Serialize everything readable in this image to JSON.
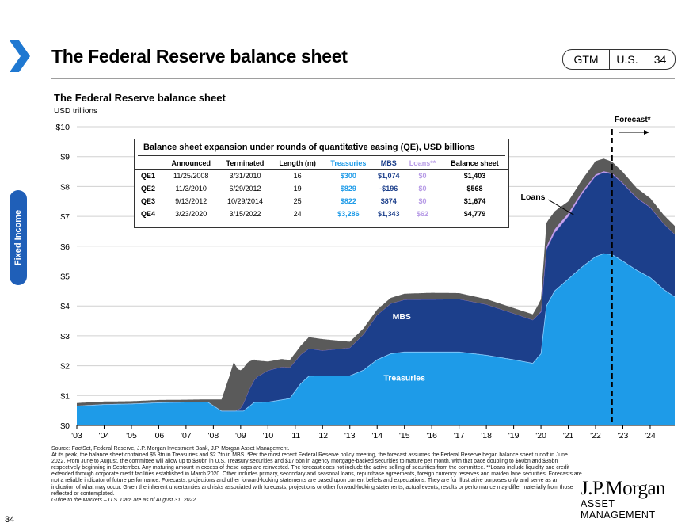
{
  "page": {
    "title": "The Federal Reserve balance sheet",
    "side_label": "Fixed Income",
    "page_number": "34",
    "badge": {
      "gtm": "GTM",
      "region": "U.S.",
      "page": "34"
    }
  },
  "chart_data": {
    "type": "area",
    "title": "The Federal Reserve balance sheet",
    "ylabel": "USD trillions",
    "ylim": [
      0,
      10
    ],
    "y_ticks": [
      "$0",
      "$1",
      "$2",
      "$3",
      "$4",
      "$5",
      "$6",
      "$7",
      "$8",
      "$9",
      "$10"
    ],
    "x_ticks": [
      "'03",
      "'04",
      "'05",
      "'06",
      "'07",
      "'08",
      "'09",
      "'10",
      "'11",
      "'12",
      "'13",
      "'14",
      "'15",
      "'16",
      "'17",
      "'18",
      "'19",
      "'20",
      "'21",
      "'22",
      "'23",
      "'24"
    ],
    "x_range": [
      2003.0,
      2024.9
    ],
    "forecast_start": 2022.6,
    "forecast_label": "Forecast*",
    "stack_order": [
      "Treasuries",
      "MBS",
      "Loans",
      "Other"
    ],
    "series": [
      {
        "name": "Treasuries",
        "color": "#1e9be8",
        "x": [
          2003.0,
          2004.0,
          2005.0,
          2006.0,
          2007.0,
          2007.8,
          2008.3,
          2008.8,
          2009.1,
          2009.5,
          2010.0,
          2010.8,
          2011.2,
          2011.5,
          2012.0,
          2013.0,
          2013.5,
          2014.0,
          2014.5,
          2015.0,
          2016.0,
          2017.0,
          2018.0,
          2019.0,
          2019.7,
          2020.0,
          2020.2,
          2020.5,
          2021.0,
          2021.5,
          2022.0,
          2022.3,
          2022.6,
          2023.0,
          2023.5,
          2024.0,
          2024.5,
          2024.9
        ],
        "values": [
          0.65,
          0.7,
          0.72,
          0.76,
          0.78,
          0.78,
          0.48,
          0.48,
          0.48,
          0.77,
          0.78,
          0.9,
          1.4,
          1.65,
          1.66,
          1.66,
          1.85,
          2.2,
          2.4,
          2.46,
          2.46,
          2.46,
          2.35,
          2.2,
          2.08,
          2.4,
          4.0,
          4.5,
          4.9,
          5.3,
          5.65,
          5.75,
          5.72,
          5.5,
          5.2,
          4.95,
          4.55,
          4.3
        ]
      },
      {
        "name": "MBS",
        "color": "#1c3f8b",
        "x": [
          2003.0,
          2008.8,
          2009.0,
          2009.3,
          2009.6,
          2010.0,
          2010.5,
          2011.0,
          2012.0,
          2013.0,
          2013.5,
          2014.0,
          2014.5,
          2015.0,
          2016.0,
          2017.0,
          2018.0,
          2019.0,
          2019.7,
          2020.0,
          2020.2,
          2020.5,
          2021.0,
          2021.5,
          2022.0,
          2022.3,
          2022.6,
          2023.0,
          2023.5,
          2024.0,
          2024.5,
          2024.9
        ],
        "values": [
          0.0,
          0.0,
          0.1,
          0.55,
          0.85,
          1.06,
          1.1,
          1.0,
          0.85,
          0.94,
          1.2,
          1.5,
          1.68,
          1.75,
          1.76,
          1.77,
          1.7,
          1.55,
          1.45,
          1.4,
          1.9,
          1.95,
          2.1,
          2.45,
          2.7,
          2.72,
          2.7,
          2.6,
          2.42,
          2.35,
          2.2,
          2.1
        ]
      },
      {
        "name": "Loans",
        "color": "#c8a7f0",
        "x": [
          2003.0,
          2019.9,
          2020.1,
          2020.3,
          2020.6,
          2021.0,
          2021.5,
          2022.0,
          2022.3,
          2022.6,
          2023.0,
          2024.9
        ],
        "values": [
          0.0,
          0.0,
          0.05,
          0.1,
          0.12,
          0.1,
          0.07,
          0.05,
          0.04,
          0.03,
          0.02,
          0.0
        ]
      },
      {
        "name": "Other",
        "color": "#5a5a5a",
        "x": [
          2003.0,
          2004.0,
          2005.0,
          2006.0,
          2007.0,
          2007.8,
          2008.3,
          2008.6,
          2008.75,
          2008.9,
          2009.2,
          2009.6,
          2010.0,
          2010.8,
          2011.2,
          2011.5,
          2012.0,
          2013.0,
          2013.5,
          2014.0,
          2015.0,
          2016.0,
          2017.0,
          2018.0,
          2019.0,
          2019.7,
          2020.0,
          2020.2,
          2020.5,
          2021.0,
          2021.5,
          2022.0,
          2022.3,
          2022.6,
          2023.0,
          2023.5,
          2024.0,
          2024.5,
          2024.9
        ],
        "values": [
          0.1,
          0.1,
          0.09,
          0.09,
          0.08,
          0.09,
          0.39,
          1.2,
          1.65,
          1.35,
          1.1,
          0.55,
          0.3,
          0.25,
          0.3,
          0.38,
          0.38,
          0.2,
          0.2,
          0.18,
          0.2,
          0.22,
          0.2,
          0.18,
          0.18,
          0.19,
          0.4,
          0.8,
          0.6,
          0.4,
          0.4,
          0.45,
          0.42,
          0.38,
          0.36,
          0.32,
          0.3,
          0.29,
          0.28
        ]
      }
    ],
    "annotations": {
      "mbs": "MBS",
      "treasuries": "Treasuries",
      "loans": "Loans"
    }
  },
  "qe_table": {
    "title": "Balance sheet expansion under rounds of quantitative easing (QE), USD billions",
    "headers": [
      "",
      "Announced",
      "Terminated",
      "Length (m)",
      "Treasuries",
      "MBS",
      "Loans**",
      "Balance sheet"
    ],
    "rows": [
      [
        "QE1",
        "11/25/2008",
        "3/31/2010",
        "16",
        "$300",
        "$1,074",
        "$0",
        "$1,403"
      ],
      [
        "QE2",
        "11/3/2010",
        "6/29/2012",
        "19",
        "$829",
        "-$196",
        "$0",
        "$568"
      ],
      [
        "QE3",
        "9/13/2012",
        "10/29/2014",
        "25",
        "$822",
        "$874",
        "$0",
        "$1,674"
      ],
      [
        "QE4",
        "3/23/2020",
        "3/15/2022",
        "24",
        "$3,286",
        "$1,343",
        "$62",
        "$4,779"
      ]
    ]
  },
  "footnote": {
    "source": "Source: FactSet, Federal Reserve, J.P. Morgan Investment Bank, J.P. Morgan Asset Management.",
    "body": "At its peak, the balance sheet contained $5.8tn in Treasuries and $2.7tn in MBS. *Per the most recent Federal Reserve policy meeting, the forecast assumes the Federal Reserve began balance sheet runoff in June 2022. From June to August, the committee will allow up to $30bn in U.S. Treasury securities and $17.5bn in agency mortgage-backed securities to mature per month, with that pace doubling to $60bn and $35bn respectively beginning in September. Any maturing amount in excess of these caps are reinvested. The forecast does not include the active selling of securities from the committee. **Loans include liquidity and credit extended through corporate credit facilities established in March 2020. Other includes primary, secondary and seasonal loans, repurchase agreements, foreign currency reserves and maiden lane securities. Forecasts are not a reliable indicator of future performance. Forecasts, projections and other forward-looking statements are based upon current beliefs and expectations. They are for illustrative purposes only and serve as an indication of what may occur. Given the inherent uncertainties and risks associated with forecasts, projections or other forward-looking statements, actual events, results or performance may differ materially from those reflected or contemplated.",
    "guide": "Guide to the Markets – U.S. Data are as of August 31, 2022."
  },
  "logo": {
    "name": "J.P.Morgan",
    "sub": "ASSET MANAGEMENT"
  }
}
